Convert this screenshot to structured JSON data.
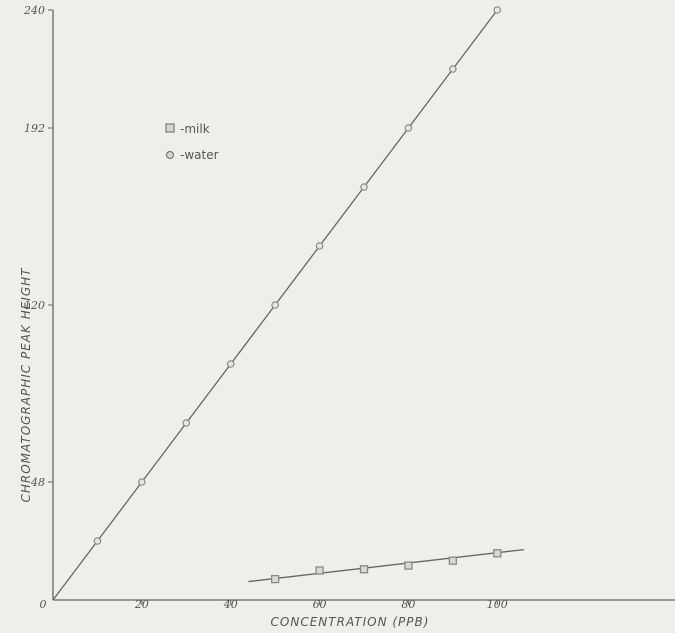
{
  "chart_data": {
    "type": "scatter",
    "xlabel": "CONCENTRATION (PPB)",
    "ylabel": "CHROMATOGRAPHIC PEAK HEIGHT",
    "xlim": [
      0,
      140
    ],
    "ylim": [
      0,
      240
    ],
    "x_ticks": [
      0,
      20,
      40,
      60,
      80,
      100
    ],
    "x_tick_labels": [
      "0",
      "20",
      "40",
      "60",
      "80",
      "100"
    ],
    "y_ticks": [
      48,
      120,
      192,
      240
    ],
    "y_tick_labels": [
      "48",
      "120",
      "192",
      "240"
    ],
    "legend_position": "upper-left",
    "grid": false,
    "series": [
      {
        "name": "milk",
        "marker": "square",
        "color": "#888888",
        "x": [
          50,
          60,
          70,
          80,
          90,
          100
        ],
        "y": [
          8.5,
          12,
          12.5,
          14,
          16,
          19
        ],
        "fit_line": {
          "x": [
            44,
            106
          ],
          "y": [
            7.5,
            20.5
          ]
        }
      },
      {
        "name": "water",
        "marker": "circle",
        "color": "#888888",
        "x": [
          10,
          20,
          30,
          40,
          50,
          60,
          70,
          80,
          90,
          100
        ],
        "y": [
          24,
          48,
          72,
          96,
          120,
          144,
          168,
          192,
          216,
          240
        ],
        "fit_line": {
          "x": [
            0,
            100
          ],
          "y": [
            0,
            240
          ]
        }
      }
    ]
  },
  "legend": {
    "items": [
      {
        "marker": "square",
        "label": "-milk"
      },
      {
        "marker": "circle",
        "label": "-water"
      }
    ]
  }
}
